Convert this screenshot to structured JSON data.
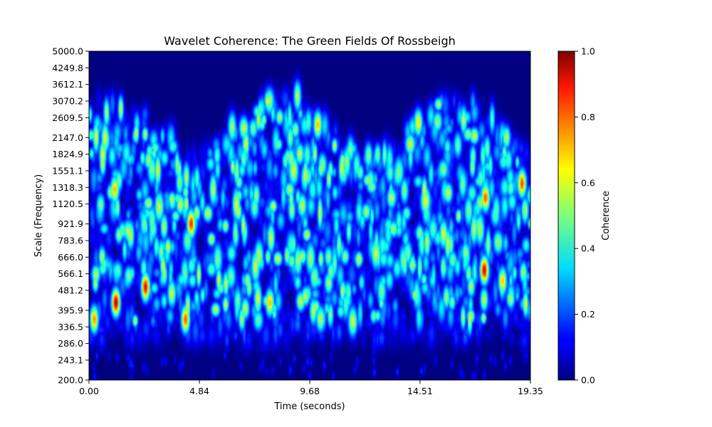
{
  "chart_data": {
    "type": "heatmap",
    "title": "Wavelet Coherence: The Green Fields Of Rossbeigh",
    "xlabel": "Time (seconds)",
    "ylabel": "Scale (Frequency)",
    "xlim": [
      0.0,
      19.35
    ],
    "ylim": [
      200.0,
      5000.0
    ],
    "yscale": "log",
    "x_ticks": [
      0.0,
      4.84,
      9.68,
      14.51,
      19.35
    ],
    "x_tick_labels": [
      "0.00",
      "4.84",
      "9.68",
      "14.51",
      "19.35"
    ],
    "y_ticks": [
      200.0,
      243.1,
      286.0,
      336.5,
      395.9,
      481.2,
      566.1,
      666.0,
      783.6,
      921.9,
      1120.5,
      1318.3,
      1551.1,
      1824.9,
      2147.0,
      2609.5,
      3070.2,
      3612.1,
      4249.8,
      5000.0
    ],
    "y_tick_labels": [
      "200.0",
      "243.1",
      "286.0",
      "336.5",
      "395.9",
      "481.2",
      "566.1",
      "666.0",
      "783.6",
      "921.9",
      "1120.5",
      "1318.3",
      "1551.1",
      "1824.9",
      "2147.0",
      "2609.5",
      "3070.2",
      "3612.1",
      "4249.8",
      "5000.0"
    ],
    "colormap": "jet",
    "colorbar": {
      "label": "Coherence",
      "range": [
        0.0,
        1.0
      ],
      "ticks": [
        0.0,
        0.2,
        0.4,
        0.6,
        0.8,
        1.0
      ],
      "tick_labels": [
        "0.0",
        "0.2",
        "0.4",
        "0.6",
        "0.8",
        "1.0"
      ]
    },
    "hotspots": [
      {
        "t": 1.15,
        "scale": 430,
        "value": 0.95
      },
      {
        "t": 2.45,
        "scale": 500,
        "value": 0.9
      },
      {
        "t": 4.45,
        "scale": 930,
        "value": 0.85
      },
      {
        "t": 4.2,
        "scale": 365,
        "value": 0.8
      },
      {
        "t": 17.3,
        "scale": 590,
        "value": 0.92
      },
      {
        "t": 17.35,
        "scale": 1200,
        "value": 0.8
      },
      {
        "t": 18.95,
        "scale": 1380,
        "value": 0.82
      },
      {
        "t": 0.2,
        "scale": 365,
        "value": 0.75
      },
      {
        "t": 1.1,
        "scale": 1300,
        "value": 0.7
      },
      {
        "t": 10.0,
        "scale": 2450,
        "value": 0.7
      },
      {
        "t": 14.4,
        "scale": 2500,
        "value": 0.65
      },
      {
        "t": 7.9,
        "scale": 430,
        "value": 0.7
      },
      {
        "t": 18.1,
        "scale": 530,
        "value": 0.7
      },
      {
        "t": 3.6,
        "scale": 470,
        "value": 0.6
      }
    ]
  }
}
